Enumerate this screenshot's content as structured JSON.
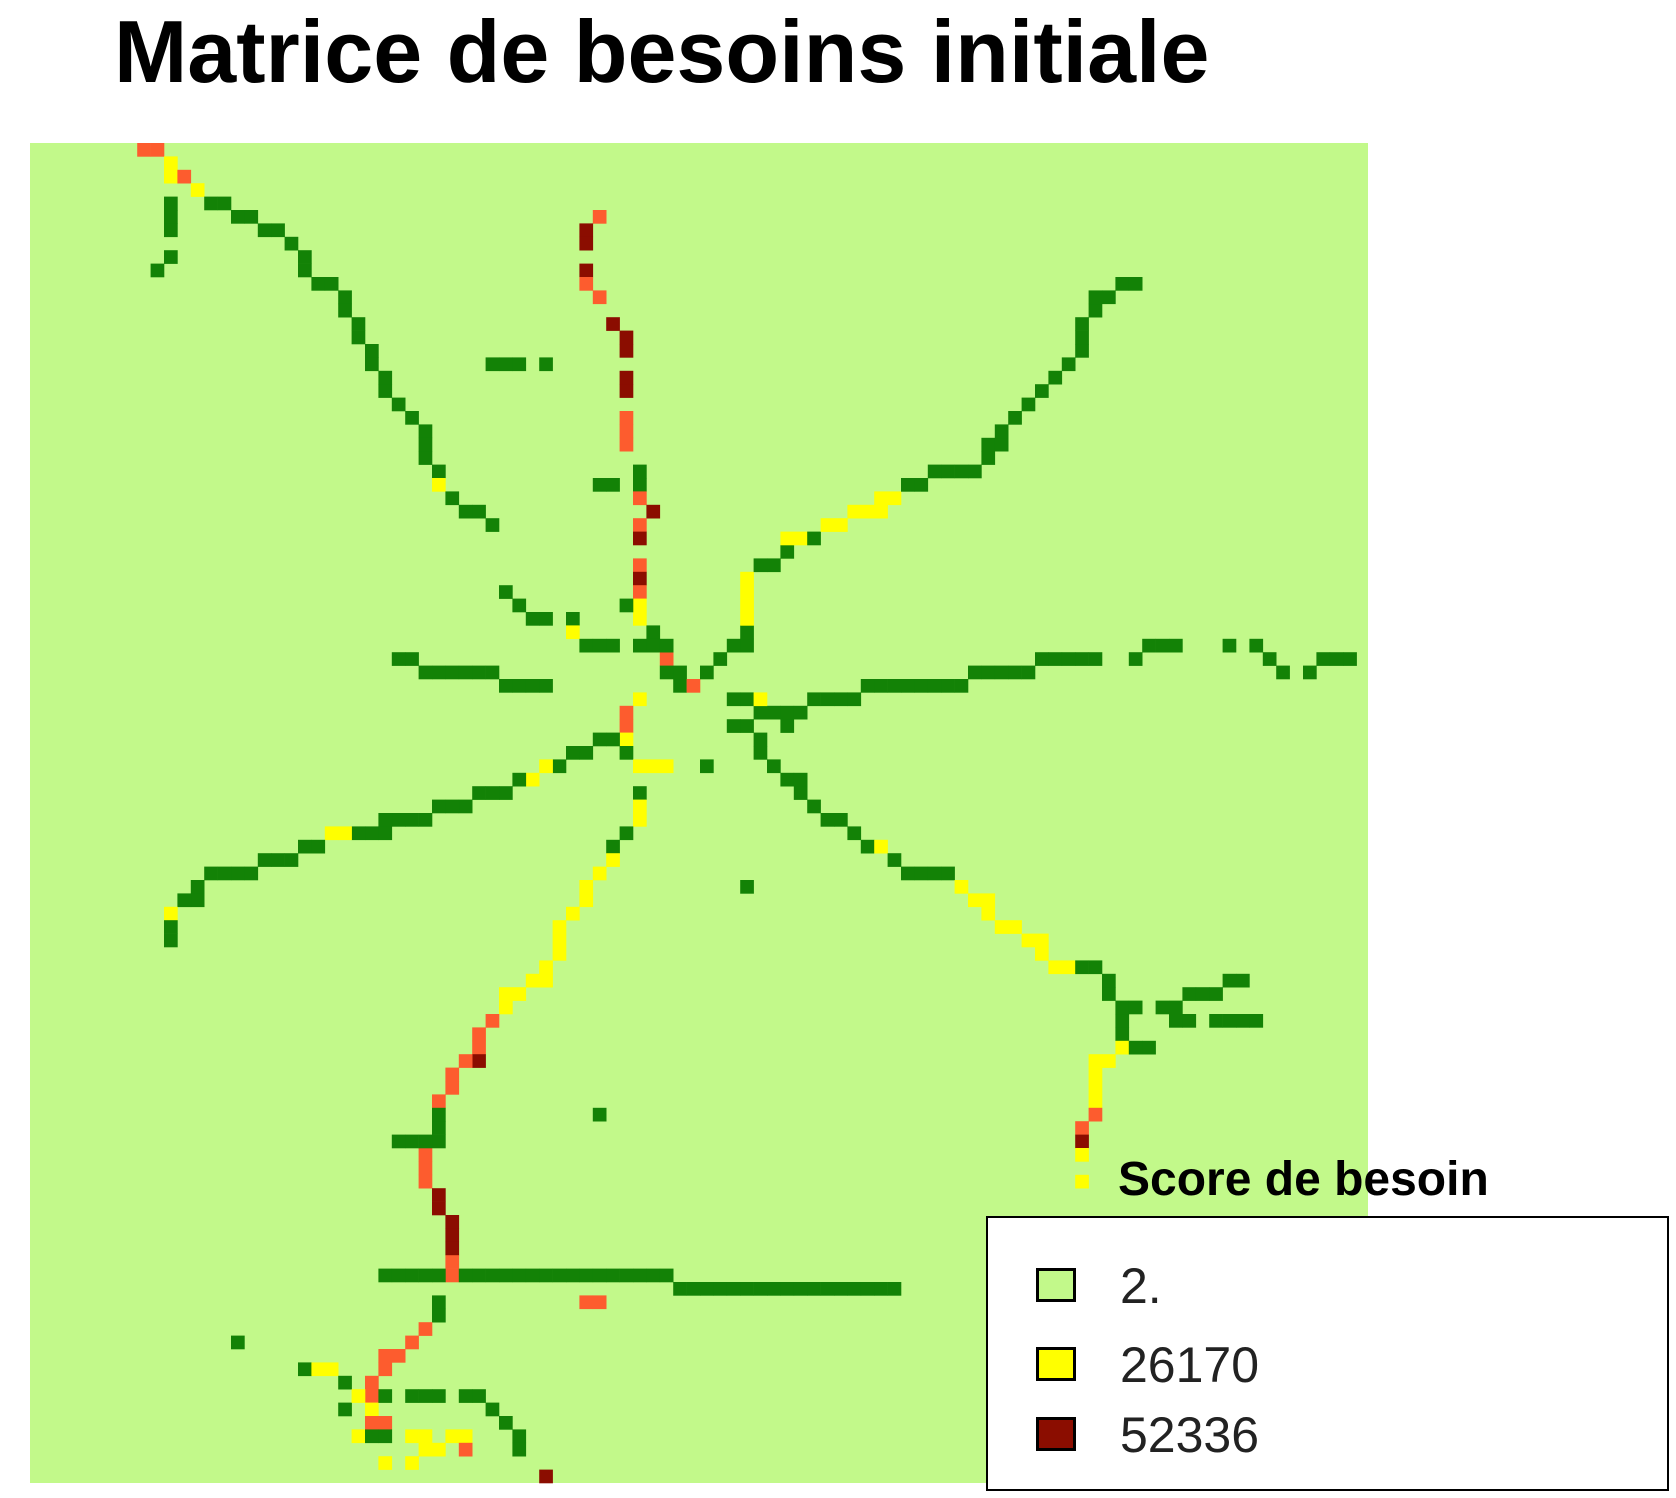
{
  "title": "Matrice de besoins initiale",
  "map": {
    "background_color": "#c2f98a",
    "colors": {
      "G": "#138206",
      "Y": "#ffff00",
      "O": "#fd5c2e",
      "R": "#8b0d00"
    }
  },
  "legend": {
    "title": "Score de besoin",
    "items": [
      {
        "label": "2.",
        "color": "#c2f98a"
      },
      {
        "label": "26170",
        "color": "#ffff00"
      },
      {
        "label": "52336",
        "color": "#8b0d00"
      }
    ]
  }
}
